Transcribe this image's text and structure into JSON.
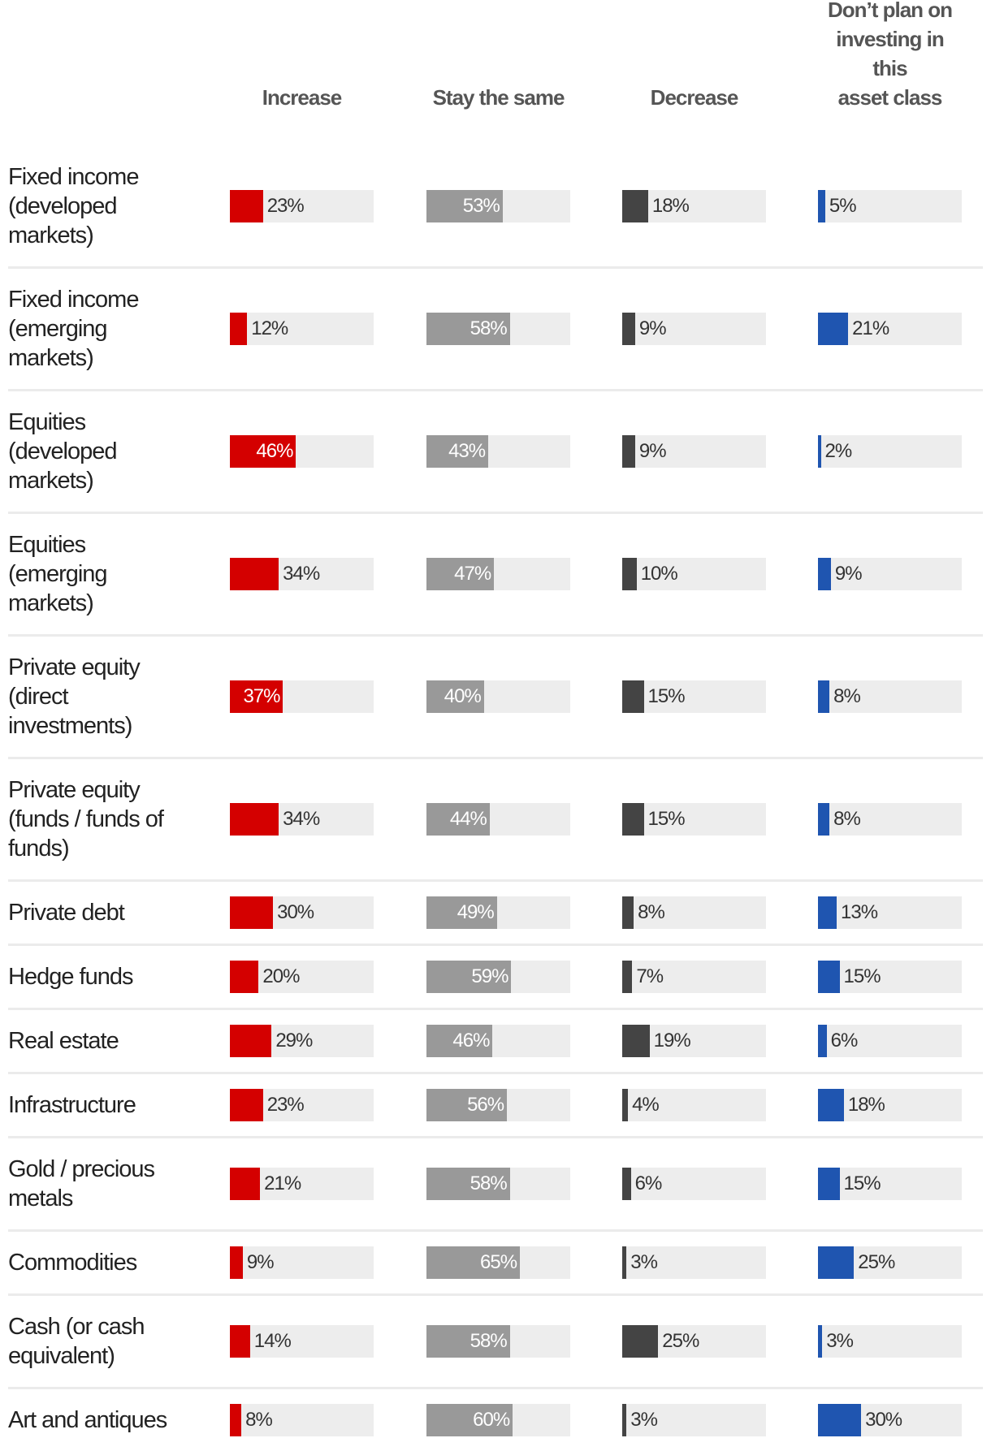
{
  "chart_data": {
    "type": "table",
    "title": "",
    "columns": [
      {
        "key": "increase",
        "label": "Increase",
        "color": "#d40000"
      },
      {
        "key": "same",
        "label": "Stay the same",
        "color": "#999999"
      },
      {
        "key": "decrease",
        "label": "Decrease",
        "color": "#444444"
      },
      {
        "key": "none",
        "label": "Don’t plan on\ninvesting in this\nasset class",
        "color": "#1f55b0"
      }
    ],
    "track_color": "#ededed",
    "rows": [
      {
        "label": "Fixed income\n(developed\nmarkets)",
        "values": [
          23,
          53,
          18,
          5
        ]
      },
      {
        "label": "Fixed income\n(emerging\nmarkets)",
        "values": [
          12,
          58,
          9,
          21
        ]
      },
      {
        "label": "Equities\n(developed\nmarkets)",
        "values": [
          46,
          43,
          9,
          2
        ]
      },
      {
        "label": "Equities\n(emerging\nmarkets)",
        "values": [
          34,
          47,
          10,
          9
        ]
      },
      {
        "label": "Private equity\n(direct\ninvestments)",
        "values": [
          37,
          40,
          15,
          8
        ]
      },
      {
        "label": "Private equity\n(funds / funds of\nfunds)",
        "values": [
          34,
          44,
          15,
          8
        ]
      },
      {
        "label": "Private debt",
        "values": [
          30,
          49,
          8,
          13
        ]
      },
      {
        "label": "Hedge funds",
        "values": [
          20,
          59,
          7,
          15
        ]
      },
      {
        "label": "Real estate",
        "values": [
          29,
          46,
          19,
          6
        ]
      },
      {
        "label": "Infrastructure",
        "values": [
          23,
          56,
          4,
          18
        ]
      },
      {
        "label": "Gold / precious\nmetals",
        "values": [
          21,
          58,
          6,
          15
        ]
      },
      {
        "label": "Commodities",
        "values": [
          9,
          65,
          3,
          25
        ]
      },
      {
        "label": "Cash (or cash\nequivalent)",
        "values": [
          14,
          58,
          25,
          3
        ]
      },
      {
        "label": "Art and antiques",
        "values": [
          8,
          60,
          3,
          30
        ]
      }
    ]
  }
}
